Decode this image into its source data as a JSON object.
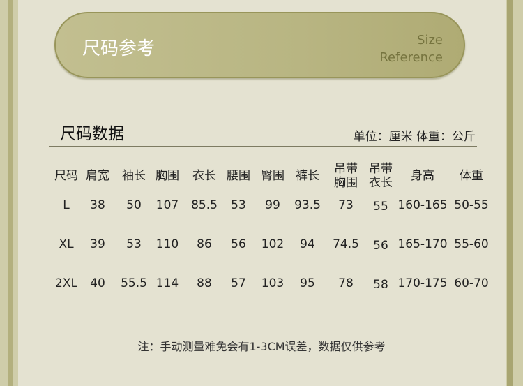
{
  "banner": {
    "title": "尺码参考",
    "en_line1": "Size",
    "en_line2": "Reference"
  },
  "section": {
    "title": "尺码数据",
    "unit": "单位：厘米 体重：公斤"
  },
  "table": {
    "headers": [
      "尺码",
      "肩宽",
      "袖长",
      "胸围",
      "衣长",
      "腰围",
      "臀围",
      "裤长",
      "吊带\n胸围",
      "吊带\n衣长",
      "身高",
      "体重"
    ],
    "rows": [
      [
        "L",
        "38",
        "50",
        "107",
        "85.5",
        "53",
        "99",
        "93.5",
        "73",
        "55",
        "160-165",
        "50-55"
      ],
      [
        "XL",
        "39",
        "53",
        "110",
        "86",
        "56",
        "102",
        "94",
        "74.5",
        "56",
        "165-170",
        "55-60"
      ],
      [
        "2XL",
        "40",
        "55.5",
        "114",
        "88",
        "57",
        "103",
        "95",
        "78",
        "58",
        "170-175",
        "60-70"
      ]
    ]
  },
  "note": "注：手动测量难免会有1-3CM误差，数据仅供参考"
}
